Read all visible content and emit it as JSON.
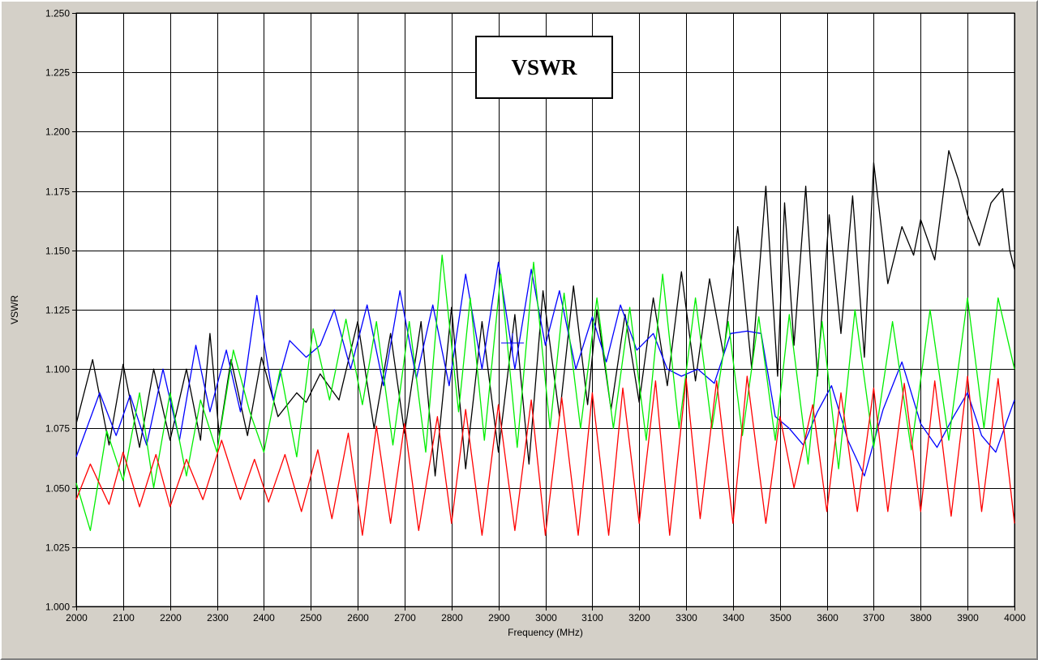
{
  "chart_data": {
    "type": "line",
    "title": "VSWR",
    "xlabel": "Frequency (MHz)",
    "ylabel": "VSWR",
    "xlim": [
      2000,
      4000
    ],
    "ylim": [
      1.0,
      1.25
    ],
    "xticks": [
      2000,
      2100,
      2200,
      2300,
      2400,
      2500,
      2600,
      2700,
      2800,
      2900,
      3000,
      3100,
      3200,
      3300,
      3400,
      3500,
      3600,
      3700,
      3800,
      3900,
      4000
    ],
    "x_tick_labels": [
      "2000",
      "2100",
      "2200",
      "2300",
      "2400",
      "2500",
      "2600",
      "2700",
      "2800",
      "2900",
      "3000",
      "3100",
      "3200",
      "3300",
      "3400",
      "3500",
      "3600",
      "3700",
      "3800",
      "3900",
      "4000"
    ],
    "yticks": [
      1.0,
      1.025,
      1.05,
      1.075,
      1.1,
      1.125,
      1.15,
      1.175,
      1.2,
      1.225,
      1.25
    ],
    "y_tick_labels": [
      "1.000",
      "1.025",
      "1.050",
      "1.075",
      "1.100",
      "1.125",
      "1.150",
      "1.175",
      "1.200",
      "1.225",
      "1.250"
    ],
    "grid": true,
    "colors": {
      "plot_background": "#ffffff",
      "frame": "#d4d0c8",
      "grid": "#000000"
    },
    "marker": {
      "x": 2930,
      "y": 1.111,
      "color": "#0000ff"
    },
    "series": [
      {
        "color": "#000000",
        "x": [
          2000,
          2035,
          2070,
          2100,
          2135,
          2165,
          2200,
          2235,
          2265,
          2285,
          2305,
          2330,
          2365,
          2395,
          2430,
          2450,
          2470,
          2490,
          2520,
          2560,
          2600,
          2635,
          2670,
          2700,
          2735,
          2765,
          2800,
          2830,
          2865,
          2900,
          2935,
          2965,
          2995,
          3030,
          3060,
          3090,
          3110,
          3140,
          3170,
          3200,
          3230,
          3260,
          3290,
          3320,
          3350,
          3380,
          3410,
          3440,
          3470,
          3495,
          3510,
          3530,
          3555,
          3580,
          3605,
          3630,
          3655,
          3680,
          3700,
          3730,
          3760,
          3785,
          3800,
          3830,
          3860,
          3880,
          3900,
          3925,
          3950,
          3975,
          3990,
          4000
        ],
        "y": [
          1.077,
          1.104,
          1.068,
          1.102,
          1.067,
          1.1,
          1.07,
          1.1,
          1.07,
          1.115,
          1.072,
          1.104,
          1.072,
          1.105,
          1.08,
          1.085,
          1.09,
          1.086,
          1.098,
          1.087,
          1.12,
          1.075,
          1.115,
          1.073,
          1.12,
          1.055,
          1.126,
          1.058,
          1.12,
          1.065,
          1.123,
          1.06,
          1.133,
          1.08,
          1.135,
          1.085,
          1.125,
          1.083,
          1.123,
          1.086,
          1.13,
          1.093,
          1.141,
          1.095,
          1.138,
          1.106,
          1.16,
          1.1,
          1.177,
          1.097,
          1.17,
          1.11,
          1.177,
          1.097,
          1.165,
          1.115,
          1.173,
          1.105,
          1.187,
          1.136,
          1.16,
          1.148,
          1.163,
          1.146,
          1.192,
          1.18,
          1.165,
          1.152,
          1.17,
          1.176,
          1.15,
          1.142
        ]
      },
      {
        "color": "#0000ff",
        "x": [
          2000,
          2050,
          2085,
          2115,
          2150,
          2185,
          2220,
          2255,
          2285,
          2320,
          2350,
          2385,
          2420,
          2455,
          2490,
          2520,
          2550,
          2585,
          2620,
          2655,
          2690,
          2725,
          2760,
          2795,
          2830,
          2865,
          2900,
          2935,
          2970,
          3000,
          3030,
          3065,
          3100,
          3130,
          3160,
          3195,
          3230,
          3260,
          3290,
          3325,
          3360,
          3395,
          3430,
          3460,
          3490,
          3520,
          3550,
          3580,
          3610,
          3645,
          3680,
          3720,
          3760,
          3800,
          3835,
          3870,
          3900,
          3930,
          3960,
          4000
        ],
        "y": [
          1.063,
          1.09,
          1.072,
          1.089,
          1.068,
          1.1,
          1.07,
          1.11,
          1.082,
          1.108,
          1.082,
          1.131,
          1.087,
          1.112,
          1.105,
          1.11,
          1.125,
          1.1,
          1.127,
          1.093,
          1.133,
          1.096,
          1.127,
          1.093,
          1.14,
          1.1,
          1.145,
          1.1,
          1.142,
          1.11,
          1.133,
          1.1,
          1.122,
          1.103,
          1.127,
          1.108,
          1.115,
          1.1,
          1.097,
          1.1,
          1.094,
          1.115,
          1.116,
          1.115,
          1.08,
          1.075,
          1.068,
          1.082,
          1.093,
          1.07,
          1.055,
          1.083,
          1.103,
          1.077,
          1.067,
          1.08,
          1.09,
          1.072,
          1.065,
          1.087
        ]
      },
      {
        "color": "#00ee00",
        "x": [
          2000,
          2030,
          2065,
          2100,
          2135,
          2165,
          2200,
          2235,
          2265,
          2300,
          2335,
          2370,
          2400,
          2435,
          2470,
          2505,
          2540,
          2575,
          2610,
          2640,
          2675,
          2710,
          2745,
          2780,
          2815,
          2840,
          2870,
          2905,
          2940,
          2975,
          3010,
          3040,
          3075,
          3110,
          3145,
          3180,
          3215,
          3250,
          3285,
          3320,
          3355,
          3390,
          3420,
          3455,
          3490,
          3520,
          3560,
          3590,
          3625,
          3660,
          3700,
          3740,
          3780,
          3820,
          3860,
          3900,
          3935,
          3965,
          4000
        ],
        "y": [
          1.052,
          1.032,
          1.074,
          1.053,
          1.09,
          1.05,
          1.09,
          1.055,
          1.087,
          1.065,
          1.108,
          1.082,
          1.065,
          1.1,
          1.063,
          1.117,
          1.087,
          1.121,
          1.085,
          1.12,
          1.068,
          1.12,
          1.065,
          1.148,
          1.082,
          1.13,
          1.07,
          1.14,
          1.067,
          1.145,
          1.075,
          1.132,
          1.075,
          1.13,
          1.075,
          1.126,
          1.07,
          1.14,
          1.075,
          1.13,
          1.075,
          1.12,
          1.072,
          1.122,
          1.07,
          1.123,
          1.06,
          1.12,
          1.058,
          1.125,
          1.067,
          1.12,
          1.066,
          1.125,
          1.07,
          1.13,
          1.075,
          1.13,
          1.1
        ]
      },
      {
        "color": "#ff0000",
        "x": [
          2000,
          2030,
          2070,
          2100,
          2135,
          2170,
          2200,
          2235,
          2270,
          2310,
          2350,
          2380,
          2410,
          2445,
          2480,
          2515,
          2545,
          2580,
          2610,
          2640,
          2670,
          2700,
          2730,
          2770,
          2800,
          2830,
          2865,
          2900,
          2935,
          2970,
          3000,
          3035,
          3070,
          3100,
          3135,
          3165,
          3200,
          3235,
          3265,
          3300,
          3330,
          3365,
          3400,
          3430,
          3470,
          3500,
          3530,
          3570,
          3600,
          3630,
          3665,
          3700,
          3730,
          3765,
          3800,
          3830,
          3865,
          3900,
          3930,
          3965,
          4000
        ],
        "y": [
          1.045,
          1.06,
          1.043,
          1.065,
          1.042,
          1.064,
          1.042,
          1.062,
          1.045,
          1.07,
          1.045,
          1.062,
          1.044,
          1.064,
          1.04,
          1.066,
          1.037,
          1.073,
          1.03,
          1.076,
          1.035,
          1.077,
          1.032,
          1.08,
          1.035,
          1.083,
          1.03,
          1.085,
          1.032,
          1.087,
          1.03,
          1.088,
          1.03,
          1.09,
          1.03,
          1.092,
          1.035,
          1.095,
          1.03,
          1.096,
          1.037,
          1.095,
          1.035,
          1.097,
          1.035,
          1.08,
          1.05,
          1.085,
          1.04,
          1.09,
          1.04,
          1.092,
          1.04,
          1.094,
          1.04,
          1.095,
          1.038,
          1.097,
          1.04,
          1.096,
          1.035
        ]
      }
    ]
  }
}
